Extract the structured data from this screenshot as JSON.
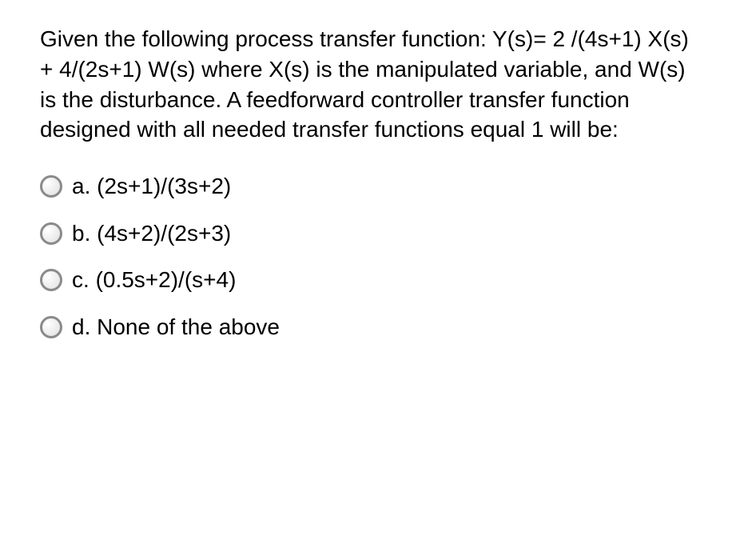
{
  "question": {
    "text": "Given the following process transfer function: Y(s)= 2 /(4s+1)  X(s) + 4/(2s+1) W(s) where X(s) is the manipulated variable, and W(s) is the disturbance. A feedforward controller transfer function designed with all needed transfer functions equal 1 will be:",
    "fontsize": 28,
    "text_color": "#000000",
    "background_color": "#ffffff"
  },
  "options": [
    {
      "letter": "a.",
      "text": "(2s+1)/(3s+2)"
    },
    {
      "letter": "b.",
      "text": "(4s+2)/(2s+3)"
    },
    {
      "letter": "c.",
      "text": "(0.5s+2)/(s+4)"
    },
    {
      "letter": "d.",
      "text": "None of the above"
    }
  ],
  "radio_style": {
    "border_color": "#8a8a8a",
    "border_width": 3,
    "diameter": 28,
    "fill": "radial-gradient"
  }
}
